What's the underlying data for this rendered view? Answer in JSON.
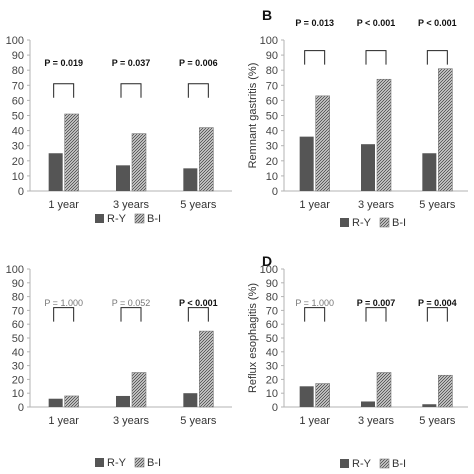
{
  "colors": {
    "ry_bar": "#555555",
    "bi_bar": "#8c8c8c",
    "axis": "#b3b3b3",
    "grey_text": "#777777",
    "black_text": "#111111"
  },
  "chart_data": [
    {
      "type": "bar",
      "panel_label": "",
      "ylabel": "",
      "categories": [
        "1 year",
        "3 years",
        "5 years"
      ],
      "ylim": [
        0,
        100
      ],
      "yticks": [
        0,
        10,
        20,
        30,
        40,
        50,
        60,
        70,
        80,
        90,
        100
      ],
      "series": [
        {
          "name": "R-Y",
          "values": [
            25,
            17,
            15
          ]
        },
        {
          "name": "B-I",
          "values": [
            51,
            38,
            42
          ]
        }
      ],
      "annotations": [
        {
          "text": "P = 0.019",
          "bold": true
        },
        {
          "text": "P = 0.037",
          "bold": true
        },
        {
          "text": "P = 0.006",
          "bold": true
        }
      ],
      "bracket_level": 71,
      "legend": "bottom"
    },
    {
      "type": "bar",
      "panel_label": "B",
      "ylabel": "Remnant gastritis (%)",
      "categories": [
        "1 year",
        "3 years",
        "5 years"
      ],
      "ylim": [
        0,
        100
      ],
      "yticks": [
        0,
        10,
        20,
        30,
        40,
        50,
        60,
        70,
        80,
        90,
        100
      ],
      "series": [
        {
          "name": "R-Y",
          "values": [
            36,
            31,
            25
          ]
        },
        {
          "name": "B-I",
          "values": [
            63,
            74,
            81
          ]
        }
      ],
      "annotations": [
        {
          "text": "P = 0.013",
          "bold": true
        },
        {
          "text": "P < 0.001",
          "bold": true
        },
        {
          "text": "P < 0.001",
          "bold": true
        }
      ],
      "bracket_level": 93,
      "legend": "bottom"
    },
    {
      "type": "bar",
      "panel_label": "",
      "ylabel": "",
      "categories": [
        "1 year",
        "3 years",
        "5 years"
      ],
      "ylim": [
        0,
        100
      ],
      "yticks": [
        0,
        10,
        20,
        30,
        40,
        50,
        60,
        70,
        80,
        90,
        100
      ],
      "series": [
        {
          "name": "R-Y",
          "values": [
            6,
            8,
            10
          ]
        },
        {
          "name": "B-I",
          "values": [
            8,
            25,
            55
          ]
        }
      ],
      "annotations": [
        {
          "text": "P = 1.000",
          "bold": false
        },
        {
          "text": "P = 0.052",
          "bold": false
        },
        {
          "text": "P < 0.001",
          "bold": true
        }
      ],
      "bracket_level": 72,
      "legend": "bottom"
    },
    {
      "type": "bar",
      "panel_label": "D",
      "ylabel": "Reflux esophagitis (%)",
      "categories": [
        "1 year",
        "3 years",
        "5 years"
      ],
      "ylim": [
        0,
        100
      ],
      "yticks": [
        0,
        10,
        20,
        30,
        40,
        50,
        60,
        70,
        80,
        90,
        100
      ],
      "series": [
        {
          "name": "R-Y",
          "values": [
            15,
            4,
            2
          ]
        },
        {
          "name": "B-I",
          "values": [
            17,
            25,
            23
          ]
        }
      ],
      "annotations": [
        {
          "text": "P = 1.000",
          "bold": false
        },
        {
          "text": "P = 0.007",
          "bold": true
        },
        {
          "text": "P = 0.004",
          "bold": true
        }
      ],
      "bracket_level": 72,
      "legend": "bottom"
    }
  ]
}
